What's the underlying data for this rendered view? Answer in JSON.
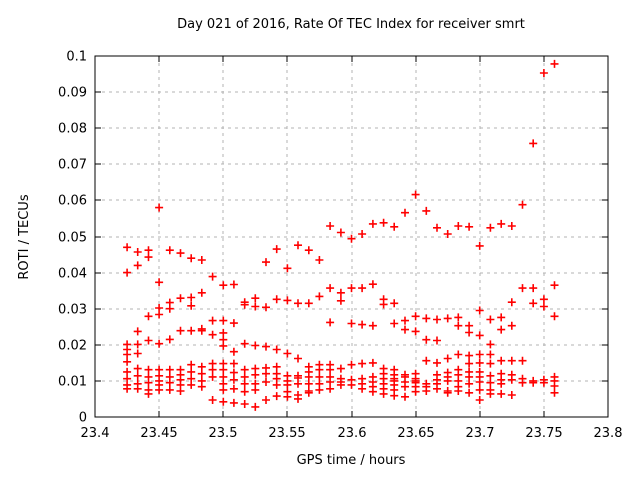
{
  "window": {
    "background": "#ffffff"
  },
  "chart_data": {
    "type": "scatter",
    "title": "Day 021 of 2016, Rate Of TEC Index for receiver smrt",
    "xlabel": "GPS time / hours",
    "ylabel": "ROTI / TECUs",
    "xlim": [
      23.4,
      23.8
    ],
    "ylim": [
      0,
      0.1
    ],
    "x_ticks": [
      23.4,
      23.45,
      23.5,
      23.55,
      23.6,
      23.65,
      23.7,
      23.75,
      23.8
    ],
    "x_tick_labels": [
      "23.4",
      "23.45",
      "23.5",
      "23.55",
      "23.6",
      "23.65",
      "23.7",
      "23.75",
      "23.8"
    ],
    "y_ticks": [
      0,
      0.01,
      0.02,
      0.03,
      0.04,
      0.05,
      0.06,
      0.07,
      0.08,
      0.09,
      0.1
    ],
    "y_tick_labels": [
      "0",
      "0.01",
      "0.02",
      "0.03",
      "0.04",
      "0.05",
      "0.06",
      "0.07",
      "0.08",
      "0.09",
      "0.1"
    ],
    "grid": true,
    "grid_style": "dashed",
    "grid_color": "#b3b3b3",
    "border_color": "#000000",
    "legend": false,
    "marker": "plus",
    "marker_color": "#ff0000",
    "samples": [
      {
        "t": 23.425,
        "roti": [
          0.047,
          0.04,
          0.0201,
          0.0187,
          0.0173,
          0.0153,
          0.0125,
          0.0106,
          0.0089,
          0.0078
        ]
      },
      {
        "t": 23.4333,
        "roti": [
          0.0457,
          0.042,
          0.0237,
          0.0201,
          0.0176,
          0.0134,
          0.0114,
          0.0092,
          0.0078
        ]
      },
      {
        "t": 23.4417,
        "roti": [
          0.0462,
          0.0443,
          0.0279,
          0.0212,
          0.0131,
          0.0111,
          0.0095,
          0.0075,
          0.0064
        ]
      },
      {
        "t": 23.45,
        "roti": [
          0.058,
          0.0373,
          0.0302,
          0.0284,
          0.0203,
          0.0131,
          0.0114,
          0.01,
          0.0089,
          0.0075
        ]
      },
      {
        "t": 23.4583,
        "roti": [
          0.0462,
          0.0317,
          0.03,
          0.0215,
          0.0131,
          0.0111,
          0.0095,
          0.0075
        ]
      },
      {
        "t": 23.4667,
        "roti": [
          0.0454,
          0.0329,
          0.0239,
          0.0131,
          0.0117,
          0.0103,
          0.0089,
          0.0072
        ]
      },
      {
        "t": 23.475,
        "roti": [
          0.044,
          0.0331,
          0.0308,
          0.0239,
          0.0145,
          0.0125,
          0.0106,
          0.0089
        ]
      },
      {
        "t": 23.4833,
        "roti": [
          0.0435,
          0.0344,
          0.0244,
          0.0239,
          0.0139,
          0.012,
          0.01,
          0.0084
        ]
      },
      {
        "t": 23.4917,
        "roti": [
          0.0389,
          0.0267,
          0.0228,
          0.0148,
          0.0131,
          0.0111,
          0.0047
        ]
      },
      {
        "t": 23.5,
        "roti": [
          0.0365,
          0.0267,
          0.0233,
          0.0214,
          0.0197,
          0.0148,
          0.0131,
          0.0111,
          0.0092,
          0.0075,
          0.0042
        ]
      },
      {
        "t": 23.5083,
        "roti": [
          0.0367,
          0.026,
          0.0181,
          0.0148,
          0.0123,
          0.0103,
          0.0078,
          0.0039
        ]
      },
      {
        "t": 23.5167,
        "roti": [
          0.0318,
          0.0311,
          0.0203,
          0.0131,
          0.0111,
          0.0092,
          0.007,
          0.0036
        ]
      },
      {
        "t": 23.525,
        "roti": [
          0.0329,
          0.0306,
          0.0198,
          0.0134,
          0.0117,
          0.0092,
          0.0075,
          0.0028
        ]
      },
      {
        "t": 23.5333,
        "roti": [
          0.0429,
          0.0304,
          0.0195,
          0.0136,
          0.012,
          0.0097,
          0.0047
        ]
      },
      {
        "t": 23.5417,
        "roti": [
          0.0465,
          0.0326,
          0.0187,
          0.0139,
          0.012,
          0.0106,
          0.0089,
          0.0058
        ]
      },
      {
        "t": 23.55,
        "roti": [
          0.0412,
          0.0323,
          0.0176,
          0.0114,
          0.01,
          0.0089,
          0.007,
          0.0056
        ]
      },
      {
        "t": 23.5583,
        "roti": [
          0.0476,
          0.0315,
          0.0162,
          0.0114,
          0.0108,
          0.0092,
          0.0061,
          0.005
        ]
      },
      {
        "t": 23.5667,
        "roti": [
          0.0462,
          0.0315,
          0.0139,
          0.0125,
          0.0111,
          0.0092,
          0.0072,
          0.0067
        ]
      },
      {
        "t": 23.575,
        "roti": [
          0.0435,
          0.0334,
          0.0145,
          0.0131,
          0.0111,
          0.0092,
          0.0075
        ]
      },
      {
        "t": 23.5833,
        "roti": [
          0.0529,
          0.0357,
          0.0262,
          0.0145,
          0.0131,
          0.0111,
          0.0097,
          0.0078
        ]
      },
      {
        "t": 23.5917,
        "roti": [
          0.0511,
          0.0344,
          0.0322,
          0.0134,
          0.0106,
          0.0097,
          0.0089
        ]
      },
      {
        "t": 23.6,
        "roti": [
          0.0494,
          0.0357,
          0.0259,
          0.0145,
          0.0103,
          0.0089
        ]
      },
      {
        "t": 23.6083,
        "roti": [
          0.0507,
          0.0357,
          0.0256,
          0.0148,
          0.0106,
          0.0092,
          0.0078
        ]
      },
      {
        "t": 23.6167,
        "roti": [
          0.0535,
          0.0368,
          0.0253,
          0.015,
          0.0111,
          0.0097,
          0.0084,
          0.007
        ]
      },
      {
        "t": 23.625,
        "roti": [
          0.0538,
          0.0326,
          0.0312,
          0.0134,
          0.012,
          0.0106,
          0.0092,
          0.0078,
          0.0064
        ]
      },
      {
        "t": 23.6333,
        "roti": [
          0.0527,
          0.0315,
          0.0259,
          0.0131,
          0.0117,
          0.0106,
          0.01,
          0.0089,
          0.0075,
          0.0059
        ]
      },
      {
        "t": 23.6417,
        "roti": [
          0.0566,
          0.0267,
          0.0242,
          0.0117,
          0.0111,
          0.0097,
          0.0084,
          0.0056
        ]
      },
      {
        "t": 23.65,
        "roti": [
          0.0616,
          0.0279,
          0.0237,
          0.012,
          0.0106,
          0.01,
          0.0095,
          0.0084,
          0.007
        ]
      },
      {
        "t": 23.6583,
        "roti": [
          0.0571,
          0.0273,
          0.0214,
          0.0156,
          0.0092,
          0.0084,
          0.0072
        ]
      },
      {
        "t": 23.6667,
        "roti": [
          0.0524,
          0.027,
          0.0212,
          0.015,
          0.0117,
          0.0103,
          0.0092,
          0.0078
        ]
      },
      {
        "t": 23.675,
        "roti": [
          0.0507,
          0.0273,
          0.0162,
          0.0123,
          0.0111,
          0.01,
          0.0072,
          0.0067
        ]
      },
      {
        "t": 23.6833,
        "roti": [
          0.0529,
          0.0276,
          0.0253,
          0.0173,
          0.0131,
          0.0117,
          0.01,
          0.0084,
          0.0072
        ]
      },
      {
        "t": 23.6917,
        "roti": [
          0.0527,
          0.0253,
          0.0234,
          0.017,
          0.0148,
          0.0125,
          0.0111,
          0.0092,
          0.0067
        ]
      },
      {
        "t": 23.7,
        "roti": [
          0.0474,
          0.0295,
          0.0226,
          0.0173,
          0.015,
          0.0125,
          0.0111,
          0.0097,
          0.0075,
          0.0047
        ]
      },
      {
        "t": 23.7083,
        "roti": [
          0.0524,
          0.027,
          0.0201,
          0.0173,
          0.0148,
          0.0114,
          0.0095,
          0.0075,
          0.0064
        ]
      },
      {
        "t": 23.7167,
        "roti": [
          0.0535,
          0.0276,
          0.0242,
          0.0156,
          0.012,
          0.0103,
          0.0092,
          0.0064
        ]
      },
      {
        "t": 23.725,
        "roti": [
          0.0529,
          0.0318,
          0.0253,
          0.0156,
          0.0117,
          0.0103,
          0.0061
        ]
      },
      {
        "t": 23.7333,
        "roti": [
          0.0588,
          0.0357,
          0.0156,
          0.0106,
          0.0095
        ]
      },
      {
        "t": 23.7417,
        "roti": [
          0.0758,
          0.0357,
          0.0315,
          0.01,
          0.0095
        ]
      },
      {
        "t": 23.75,
        "roti": [
          0.0953,
          0.0326,
          0.0306,
          0.0103,
          0.0095
        ]
      },
      {
        "t": 23.7583,
        "roti": [
          0.0978,
          0.0365,
          0.0279,
          0.0111,
          0.01,
          0.0086,
          0.0067
        ]
      }
    ]
  }
}
